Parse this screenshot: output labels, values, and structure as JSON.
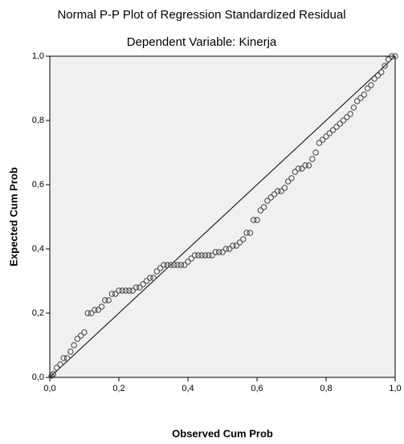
{
  "chart_data": {
    "type": "scatter",
    "title": "Normal P-P Plot of Regression Standardized Residual",
    "subtitle": "Dependent Variable: Kinerja",
    "x_label": "Observed Cum Prob",
    "y_label": "Expected Cum Prob",
    "x": [
      0.005,
      0.01,
      0.02,
      0.03,
      0.04,
      0.05,
      0.06,
      0.07,
      0.08,
      0.09,
      0.1,
      0.11,
      0.12,
      0.13,
      0.14,
      0.15,
      0.16,
      0.17,
      0.18,
      0.19,
      0.2,
      0.21,
      0.22,
      0.23,
      0.24,
      0.25,
      0.26,
      0.27,
      0.28,
      0.29,
      0.3,
      0.31,
      0.32,
      0.33,
      0.34,
      0.35,
      0.36,
      0.37,
      0.38,
      0.39,
      0.4,
      0.41,
      0.42,
      0.43,
      0.44,
      0.45,
      0.46,
      0.47,
      0.48,
      0.49,
      0.5,
      0.51,
      0.52,
      0.53,
      0.54,
      0.55,
      0.56,
      0.57,
      0.58,
      0.59,
      0.6,
      0.61,
      0.62,
      0.63,
      0.64,
      0.65,
      0.66,
      0.67,
      0.68,
      0.69,
      0.7,
      0.71,
      0.72,
      0.73,
      0.74,
      0.75,
      0.76,
      0.77,
      0.78,
      0.79,
      0.8,
      0.81,
      0.82,
      0.83,
      0.84,
      0.85,
      0.86,
      0.87,
      0.88,
      0.89,
      0.9,
      0.91,
      0.92,
      0.93,
      0.94,
      0.95,
      0.96,
      0.97,
      0.98,
      0.99,
      1.0
    ],
    "values": [
      0.005,
      0.01,
      0.03,
      0.04,
      0.06,
      0.06,
      0.08,
      0.1,
      0.12,
      0.13,
      0.14,
      0.2,
      0.2,
      0.21,
      0.21,
      0.22,
      0.24,
      0.24,
      0.26,
      0.26,
      0.27,
      0.27,
      0.27,
      0.27,
      0.27,
      0.28,
      0.28,
      0.29,
      0.3,
      0.31,
      0.31,
      0.33,
      0.34,
      0.35,
      0.35,
      0.35,
      0.35,
      0.35,
      0.35,
      0.35,
      0.36,
      0.37,
      0.38,
      0.38,
      0.38,
      0.38,
      0.38,
      0.38,
      0.39,
      0.39,
      0.39,
      0.4,
      0.4,
      0.41,
      0.41,
      0.42,
      0.43,
      0.45,
      0.45,
      0.49,
      0.49,
      0.52,
      0.53,
      0.55,
      0.56,
      0.57,
      0.58,
      0.58,
      0.59,
      0.61,
      0.62,
      0.64,
      0.65,
      0.65,
      0.66,
      0.66,
      0.68,
      0.7,
      0.73,
      0.74,
      0.75,
      0.76,
      0.77,
      0.78,
      0.79,
      0.8,
      0.81,
      0.82,
      0.84,
      0.86,
      0.87,
      0.88,
      0.9,
      0.91,
      0.93,
      0.94,
      0.95,
      0.97,
      0.99,
      1.0,
      1.0
    ],
    "xlim": [
      0,
      1
    ],
    "ylim": [
      0,
      1
    ],
    "xticks": [
      {
        "value": 0,
        "label": "0,0"
      },
      {
        "value": 0.2,
        "label": "0,2"
      },
      {
        "value": 0.4,
        "label": "0,4"
      },
      {
        "value": 0.6,
        "label": "0,6"
      },
      {
        "value": 0.8,
        "label": "0,8"
      },
      {
        "value": 1,
        "label": "1,0"
      }
    ],
    "yticks": [
      {
        "value": 0,
        "label": "0,0"
      },
      {
        "value": 0.2,
        "label": "0,2"
      },
      {
        "value": 0.4,
        "label": "0,4"
      },
      {
        "value": 0.6,
        "label": "0,6"
      },
      {
        "value": 0.8,
        "label": "0,8"
      },
      {
        "value": 1,
        "label": "1,0"
      }
    ],
    "grid": false,
    "color": "#444444"
  }
}
